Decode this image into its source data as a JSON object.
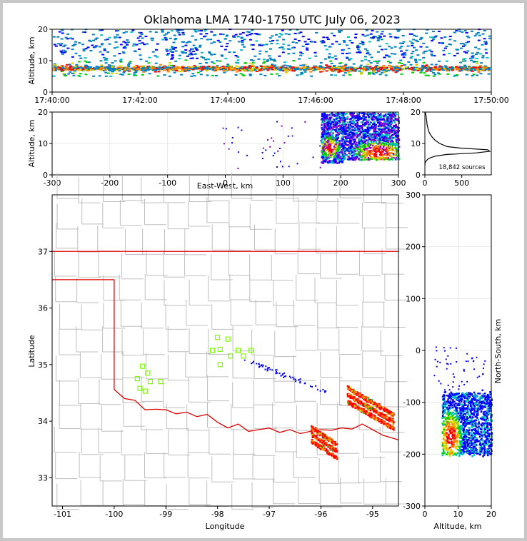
{
  "figure": {
    "title": "Oklahoma LMA 1740-1750 UTC July 06, 2023",
    "colors": {
      "state_border": "#e00000",
      "county_lines": "#bfbfbf",
      "stations": "#7cfc00",
      "frame": "#000000",
      "density_scale": [
        "#0000ff",
        "#00c0c0",
        "#00d000",
        "#d8d800",
        "#ff8000",
        "#ff0000"
      ]
    }
  },
  "chart_data": [
    {
      "id": "time_height",
      "type": "heatmap",
      "title": "",
      "xlabel": "",
      "ylabel": "Altitude, km",
      "x_tick_labels": [
        "17:40:00",
        "17:42:00",
        "17:44:00",
        "17:46:00",
        "17:48:00",
        "17:50:00"
      ],
      "xlim": [
        "17:40:00",
        "17:50:00"
      ],
      "ylim": [
        0,
        20
      ],
      "y_ticks": [
        0,
        10,
        20
      ],
      "grid": true,
      "density_peak_altitude_km": 7.5,
      "source_altitude_range_km": [
        5,
        20
      ]
    },
    {
      "id": "east_west_height",
      "type": "heatmap",
      "xlabel": "East-West, km",
      "ylabel": "Altitude, km",
      "xlim": [
        -300,
        300
      ],
      "x_ticks": [
        -300,
        -200,
        -100,
        0,
        100,
        200,
        300
      ],
      "ylim": [
        0,
        20
      ],
      "y_ticks": [
        0,
        10,
        20
      ],
      "grid": true,
      "source_clusters": [
        {
          "x_range_km": [
            165,
            205
          ],
          "altitude_range_km": [
            4,
            20
          ],
          "peak_km": [
            180,
            9
          ]
        },
        {
          "x_range_km": [
            200,
            300
          ],
          "altitude_range_km": [
            5,
            20
          ],
          "peak_km": [
            265,
            7.5
          ]
        }
      ]
    },
    {
      "id": "altitude_histogram",
      "type": "line",
      "xlabel": "",
      "ylabel": "",
      "xlim": [
        0,
        900
      ],
      "x_ticks": [
        0,
        500
      ],
      "ylim": [
        0,
        20
      ],
      "y_ticks": [
        0,
        10,
        20
      ],
      "annotation": "18,842 sources",
      "x": [
        0,
        5,
        20,
        40,
        80,
        150,
        300,
        700,
        880,
        850,
        500,
        300,
        200,
        140,
        100,
        70,
        50,
        40,
        30,
        25,
        20,
        15,
        10,
        5
      ],
      "y": [
        3,
        4,
        4.5,
        5,
        5.5,
        6,
        6.5,
        7,
        7.5,
        8,
        8.5,
        9,
        10,
        11,
        12,
        13,
        14,
        15,
        16,
        17,
        18,
        19,
        19.5,
        20
      ]
    },
    {
      "id": "plan_view",
      "type": "scatter",
      "xlabel": "Longitude",
      "ylabel": "Latitude",
      "xlim": [
        -101.2,
        -94.5
      ],
      "ylim": [
        32.5,
        38.0
      ],
      "x_ticks": [
        -101,
        -100,
        -99,
        -98,
        -97,
        -96,
        -95
      ],
      "y_ticks": [
        33,
        34,
        35,
        36,
        37
      ],
      "stations": [
        [
          -99.45,
          34.97
        ],
        [
          -99.35,
          34.85
        ],
        [
          -99.55,
          34.75
        ],
        [
          -99.3,
          34.7
        ],
        [
          -99.1,
          34.7
        ],
        [
          -99.5,
          34.58
        ],
        [
          -99.4,
          34.53
        ],
        [
          -98.0,
          35.48
        ],
        [
          -97.8,
          35.45
        ],
        [
          -98.1,
          35.25
        ],
        [
          -97.95,
          35.27
        ],
        [
          -97.6,
          35.25
        ],
        [
          -97.35,
          35.25
        ],
        [
          -97.75,
          35.15
        ],
        [
          -97.5,
          35.15
        ],
        [
          -97.95,
          35.0
        ]
      ],
      "source_regions": [
        {
          "lon_range": [
            -96.2,
            -95.7
          ],
          "lat_range": [
            33.4,
            33.9
          ]
        },
        {
          "lon_range": [
            -95.5,
            -94.6
          ],
          "lat_range": [
            33.8,
            34.6
          ]
        }
      ]
    },
    {
      "id": "height_north_south",
      "type": "heatmap",
      "xlabel": "Altitude, km",
      "ylabel": "North-South, km",
      "xlim": [
        0,
        20
      ],
      "x_ticks": [
        0,
        10,
        20
      ],
      "ylim": [
        -300,
        300
      ],
      "y_ticks": [
        -300,
        -200,
        -100,
        0,
        100,
        200,
        300
      ],
      "grid": true,
      "source_clusters": [
        {
          "ns_range_km": [
            -200,
            -80
          ],
          "altitude_range_km": [
            5,
            20
          ],
          "peak": [
            7.5,
            -165
          ]
        }
      ]
    }
  ]
}
